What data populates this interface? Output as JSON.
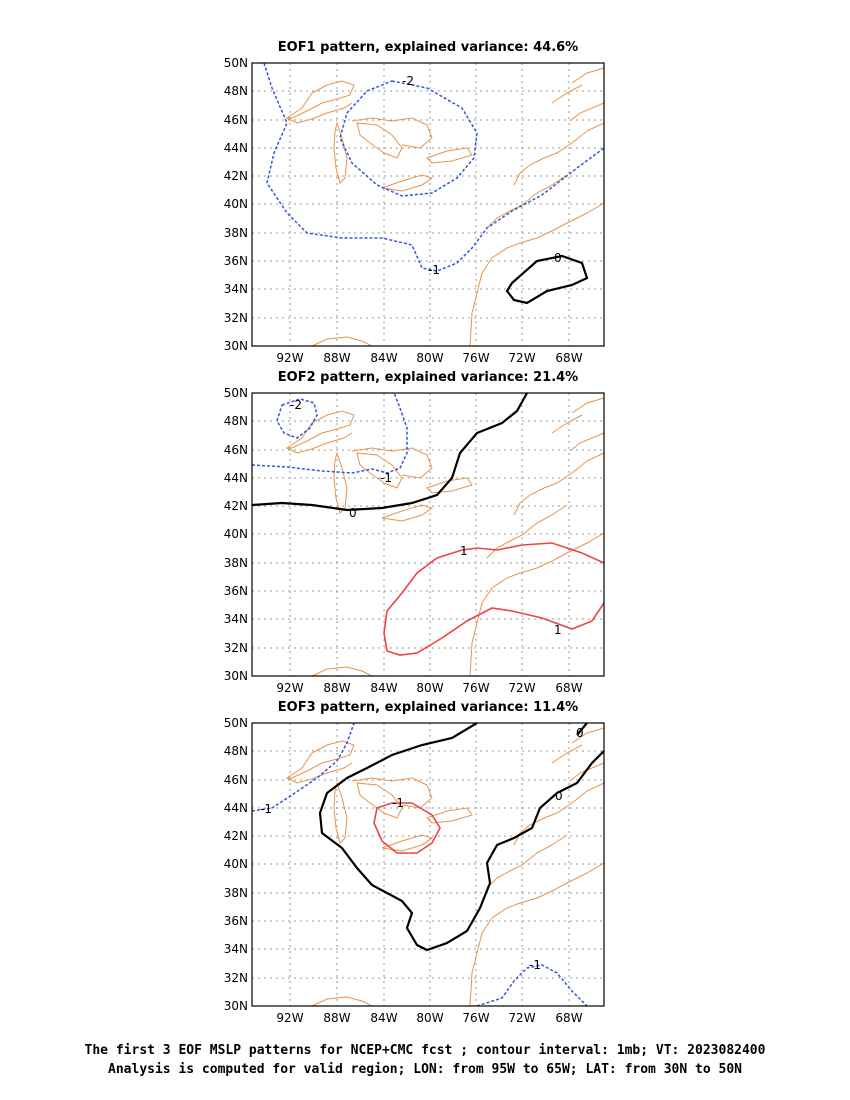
{
  "panels": [
    {
      "title": "EOF1 pattern, explained variance: 44.6%"
    },
    {
      "title": "EOF2 pattern, explained variance: 21.4%"
    },
    {
      "title": "EOF3 pattern, explained variance: 11.4%"
    }
  ],
  "axes": {
    "lat_ticks": [
      "50N",
      "48N",
      "46N",
      "44N",
      "42N",
      "40N",
      "38N",
      "36N",
      "34N",
      "32N",
      "30N"
    ],
    "lon_ticks": [
      "92W",
      "88W",
      "84W",
      "80W",
      "76W",
      "72W",
      "68W"
    ]
  },
  "contour_labels": {
    "p1": [
      "-2",
      "-1",
      "0"
    ],
    "p2": [
      "-2",
      "-1",
      "0",
      "1",
      "1"
    ],
    "p3": [
      "-1",
      "-1",
      "0",
      "0",
      "-1"
    ]
  },
  "colors": {
    "negative": "#3355dd",
    "zero": "#000000",
    "positive": "#ee4444",
    "coast": "#e8944a",
    "grid": "#999999"
  },
  "caption": {
    "line1": "The first 3 EOF MSLP patterns for NCEP+CMC fcst ; contour interval: 1mb; VT: 2023082400",
    "line2": "Analysis is computed for valid region; LON: from 95W to 65W; LAT: from 30N to 50N"
  }
}
